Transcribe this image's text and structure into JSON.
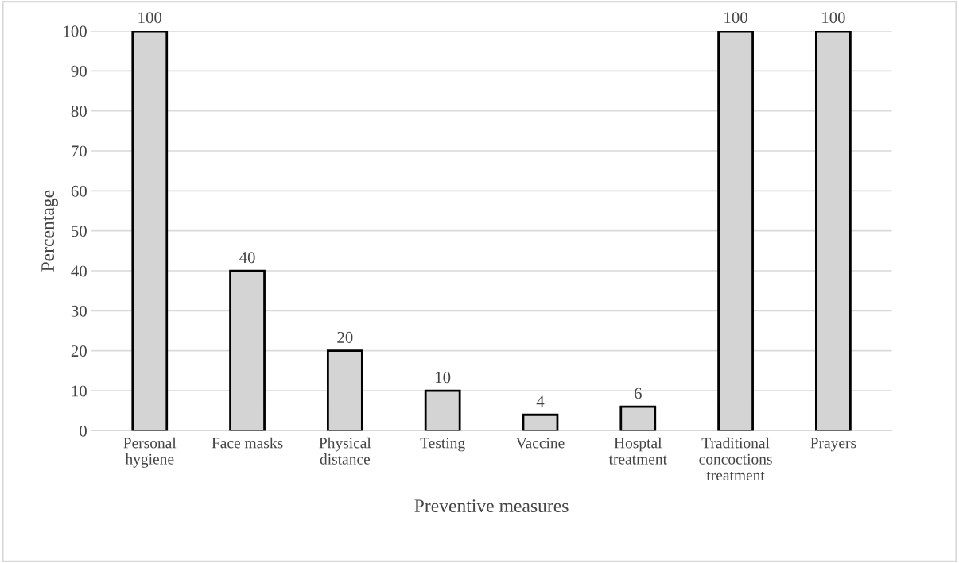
{
  "chart_data": {
    "type": "bar",
    "xlabel": "Preventive measures",
    "ylabel": "Percentage",
    "categories": [
      "Personal\nhygiene",
      "Face masks",
      "Physical\ndistance",
      "Testing",
      "Vaccine",
      "Hosptal\ntreatment",
      "Traditional\nconcoctions\ntreatment",
      "Prayers"
    ],
    "values": [
      100,
      40,
      20,
      10,
      4,
      6,
      100,
      100
    ],
    "color": "#d4d4d4",
    "ylim": [
      0,
      100
    ],
    "yticks": [
      0,
      10,
      20,
      30,
      40,
      50,
      60,
      70,
      80,
      90,
      100
    ],
    "grid": "y",
    "data_labels": true
  }
}
